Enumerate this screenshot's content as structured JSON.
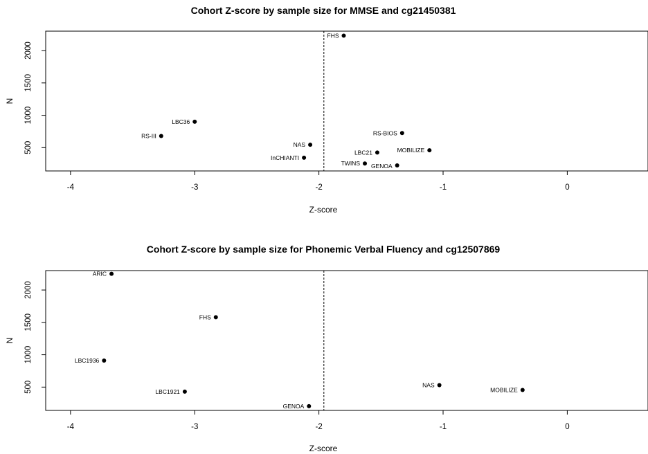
{
  "chart_data": [
    {
      "type": "scatter",
      "title": "Cohort Z-score by sample size for MMSE and cg21450381",
      "xlabel": "Z-score",
      "ylabel": "N",
      "xlim": [
        -4.2,
        0.65
      ],
      "ylim": [
        140,
        2300
      ],
      "xticks": [
        -4,
        -3,
        -2,
        -1,
        0
      ],
      "yticks": [
        500,
        1000,
        1500,
        2000
      ],
      "reference_line_x": -1.96,
      "points": [
        {
          "label": "FHS",
          "x": -1.8,
          "y": 2230
        },
        {
          "label": "LBC36",
          "x": -3.0,
          "y": 900
        },
        {
          "label": "RS-III",
          "x": -3.27,
          "y": 680
        },
        {
          "label": "NAS",
          "x": -2.07,
          "y": 545
        },
        {
          "label": "InCHIANTI",
          "x": -2.12,
          "y": 345
        },
        {
          "label": "RS-BIOS",
          "x": -1.33,
          "y": 725
        },
        {
          "label": "MOBILIZE",
          "x": -1.11,
          "y": 460
        },
        {
          "label": "LBC21",
          "x": -1.53,
          "y": 425
        },
        {
          "label": "TWINS",
          "x": -1.63,
          "y": 255
        },
        {
          "label": "GENOA",
          "x": -1.37,
          "y": 225
        }
      ]
    },
    {
      "type": "scatter",
      "title": "Cohort Z-score by sample size for Phonemic Verbal Fluency and cg12507869",
      "xlabel": "Z-score",
      "ylabel": "N",
      "xlim": [
        -4.2,
        0.65
      ],
      "ylim": [
        140,
        2300
      ],
      "xticks": [
        -4,
        -3,
        -2,
        -1,
        0
      ],
      "yticks": [
        500,
        1000,
        1500,
        2000
      ],
      "reference_line_x": -1.96,
      "points": [
        {
          "label": "ARIC",
          "x": -3.67,
          "y": 2250
        },
        {
          "label": "FHS",
          "x": -2.83,
          "y": 1580
        },
        {
          "label": "LBC1936",
          "x": -3.73,
          "y": 910
        },
        {
          "label": "LBC1921",
          "x": -3.08,
          "y": 430
        },
        {
          "label": "GENOA",
          "x": -2.08,
          "y": 205
        },
        {
          "label": "NAS",
          "x": -1.03,
          "y": 530
        },
        {
          "label": "MOBILIZE",
          "x": -0.36,
          "y": 455
        }
      ]
    }
  ]
}
